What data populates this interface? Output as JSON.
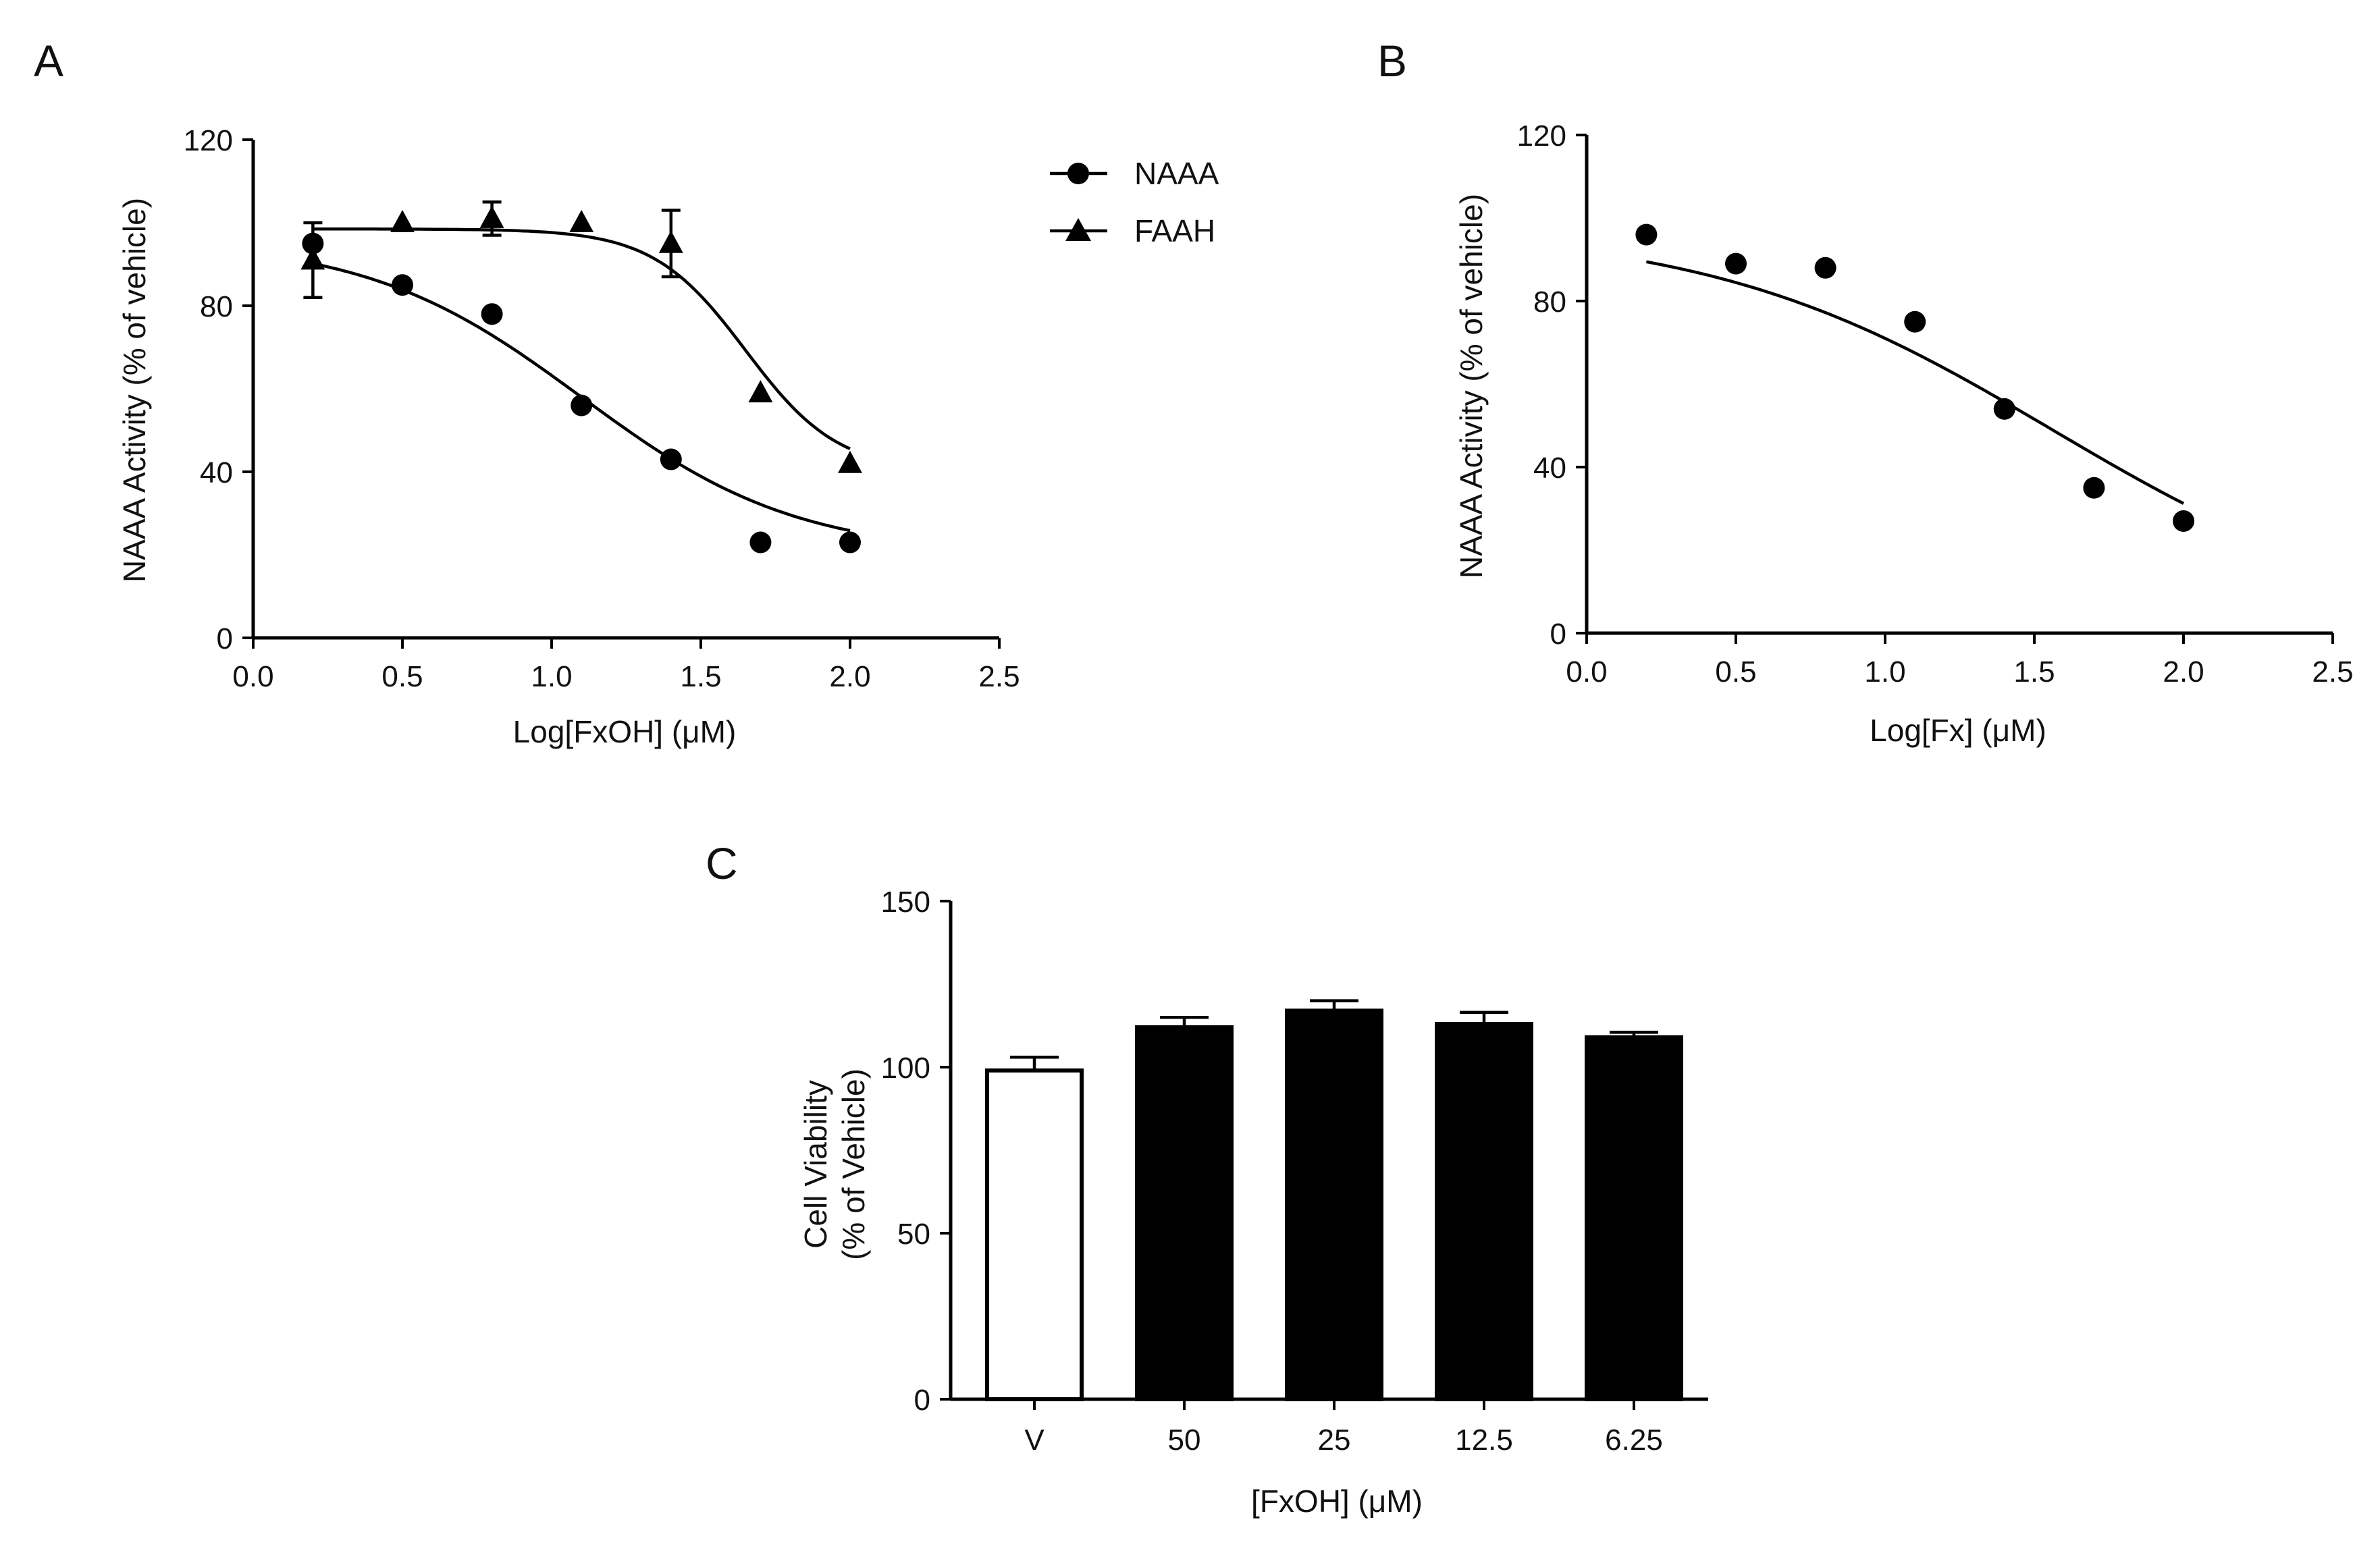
{
  "chart_data": [
    {
      "panel": "A",
      "type": "scatter",
      "xlabel": "Log[FxOH] (μM)",
      "ylabel": "NAAA Activity (% of vehicle)",
      "xlim": [
        0,
        2.5
      ],
      "ylim": [
        0,
        120
      ],
      "xticks": [
        "0.0",
        "0.5",
        "1.0",
        "1.5",
        "2.0",
        "2.5"
      ],
      "yticks": [
        "0",
        "40",
        "80",
        "120"
      ],
      "legend_position": "top-right, outside plot",
      "series": [
        {
          "name": "NAAA",
          "marker": "circle",
          "x": [
            0.2,
            0.5,
            0.8,
            1.1,
            1.4,
            1.7,
            2.0
          ],
          "y": [
            95,
            85,
            78,
            56,
            43,
            23,
            23
          ],
          "err": [
            0,
            0,
            0,
            0,
            0,
            0,
            0
          ],
          "fit": {
            "top": 96,
            "bottom": 20,
            "logIC50": 1.1,
            "hill": -1.2
          }
        },
        {
          "name": "FAAH",
          "marker": "triangle",
          "x": [
            0.2,
            0.5,
            0.8,
            1.1,
            1.4,
            1.7,
            2.0
          ],
          "y": [
            91,
            100,
            101,
            100,
            95,
            59,
            42
          ],
          "err": [
            9,
            0,
            4,
            0,
            8,
            0,
            0
          ],
          "fit": {
            "top": 98.5,
            "bottom": 40,
            "logIC50": 1.65,
            "hill": -2.8
          }
        }
      ]
    },
    {
      "panel": "B",
      "type": "scatter",
      "xlabel": "Log[Fx] (μM)",
      "ylabel": "NAAA Activity (% of vehicle)",
      "xlim": [
        0,
        2.5
      ],
      "ylim": [
        0,
        120
      ],
      "xticks": [
        "0.0",
        "0.5",
        "1.0",
        "1.5",
        "2.0",
        "2.5"
      ],
      "yticks": [
        "0",
        "40",
        "80",
        "120"
      ],
      "series": [
        {
          "name": "NAAA",
          "marker": "circle",
          "x": [
            0.2,
            0.5,
            0.8,
            1.1,
            1.4,
            1.7,
            2.0
          ],
          "y": [
            96,
            89,
            88,
            75,
            54,
            35,
            27
          ],
          "fit": {
            "top": 98,
            "bottom": 0,
            "logIC50": 1.56,
            "hill": -0.75
          }
        }
      ]
    },
    {
      "panel": "C",
      "type": "bar",
      "xlabel": "[FxOH] (μM)",
      "ylabel_lines": [
        "Cell Viability",
        "(% of Vehicle)"
      ],
      "categories": [
        "V",
        "50",
        "25",
        "12.5",
        "6.25"
      ],
      "values": [
        99,
        112,
        117,
        113,
        109
      ],
      "errors": [
        4,
        3,
        3,
        3.5,
        1.5
      ],
      "fills": [
        "#ffffff",
        "#000000",
        "#000000",
        "#000000",
        "#000000"
      ],
      "ylim": [
        0,
        150
      ],
      "yticks": [
        "0",
        "50",
        "100",
        "150"
      ]
    }
  ],
  "panel_labels": [
    "A",
    "B",
    "C"
  ],
  "colors": {
    "ink": "#000000",
    "background": "#ffffff"
  }
}
